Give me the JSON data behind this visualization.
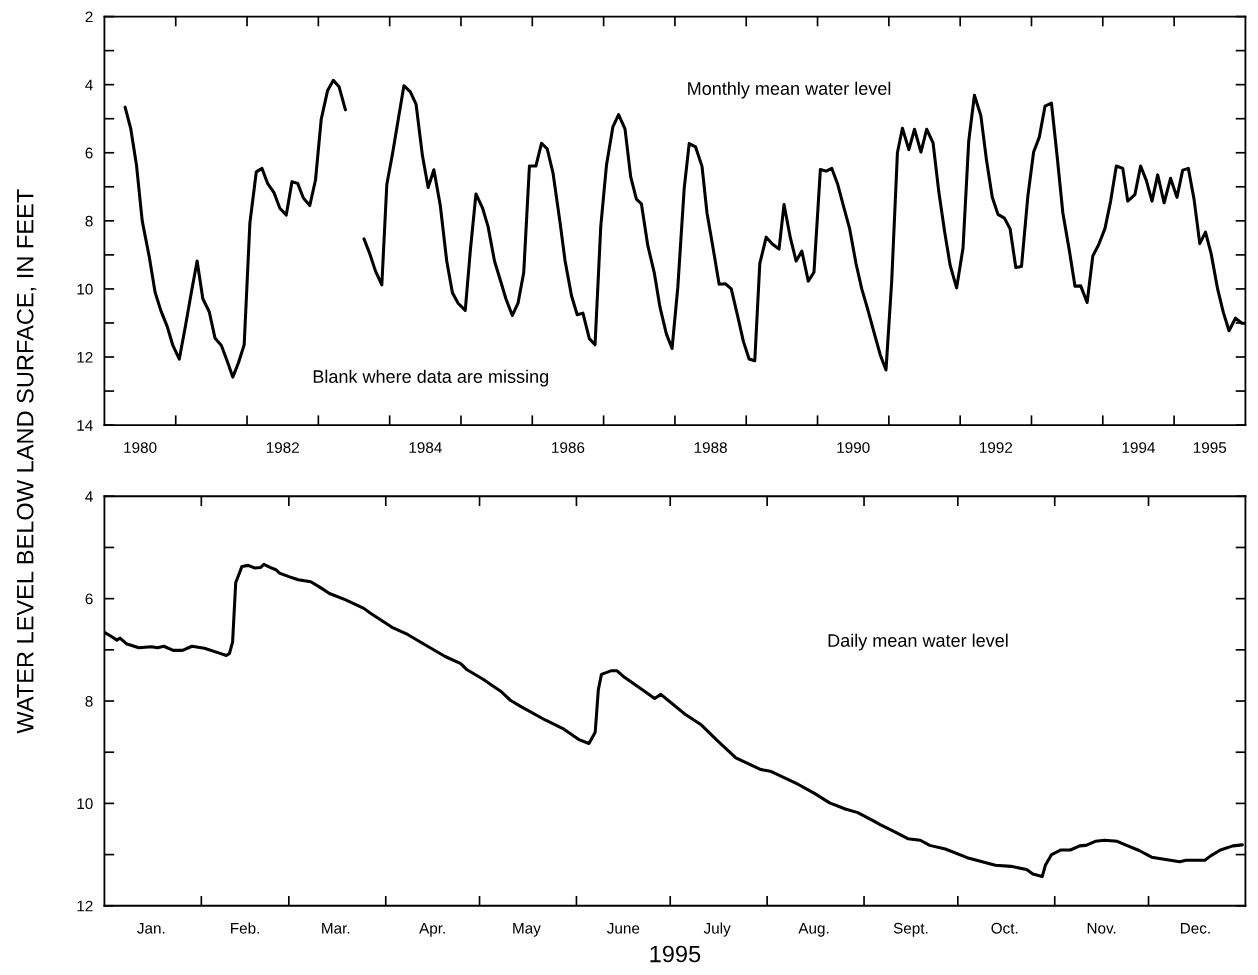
{
  "chart_data": [
    {
      "type": "line",
      "ylabel": "WATER LEVEL BELOW LAND SURFACE, IN FEET",
      "annotations": [
        "Monthly mean water level",
        "Blank where data are missing"
      ],
      "xlim": [
        1980,
        1996
      ],
      "ylim": [
        14,
        2
      ],
      "xticks": [
        {
          "value": 1981,
          "label": null
        },
        {
          "value": 1982,
          "label": null
        },
        {
          "value": 1983,
          "label": null
        },
        {
          "value": 1984,
          "label": null
        },
        {
          "value": 1985,
          "label": null
        },
        {
          "value": 1986,
          "label": null
        },
        {
          "value": 1987,
          "label": null
        },
        {
          "value": 1988,
          "label": null
        },
        {
          "value": 1989,
          "label": null
        },
        {
          "value": 1990,
          "label": null
        },
        {
          "value": 1991,
          "label": null
        },
        {
          "value": 1992,
          "label": null
        },
        {
          "value": 1993,
          "label": null
        },
        {
          "value": 1994,
          "label": null
        },
        {
          "value": 1995,
          "label": null
        },
        {
          "value": 1980.5,
          "label": "1980"
        },
        {
          "value": 1982.5,
          "label": "1982"
        },
        {
          "value": 1984.5,
          "label": "1984"
        },
        {
          "value": 1986.5,
          "label": "1986"
        },
        {
          "value": 1988.5,
          "label": "1988"
        },
        {
          "value": 1990.5,
          "label": "1990"
        },
        {
          "value": 1992.5,
          "label": "1992"
        },
        {
          "value": 1994.5,
          "label": "1994"
        },
        {
          "value": 1995.5,
          "label": "1995"
        }
      ],
      "yticks": [
        2,
        {
          "value": 3,
          "label": null
        },
        4,
        {
          "value": 5,
          "label": null
        },
        6,
        {
          "value": 7,
          "label": null
        },
        8,
        {
          "value": 9,
          "label": null
        },
        10,
        {
          "value": 11,
          "label": null
        },
        12,
        {
          "value": 13,
          "label": null
        },
        14
      ],
      "x": [
        1980.29,
        1980.37,
        1980.45,
        1980.53,
        1980.63,
        1980.71,
        1980.79,
        1980.88,
        1980.96,
        1981.05,
        1981.13,
        1981.22,
        1981.3,
        1981.38,
        1981.47,
        1981.55,
        1981.64,
        1981.72,
        1981.8,
        1981.88,
        1981.96,
        1982.04,
        1982.13,
        1982.21,
        1982.29,
        1982.38,
        1982.46,
        1982.55,
        1982.63,
        1982.71,
        1982.79,
        1982.88,
        1982.96,
        1983.04,
        1983.13,
        1983.21,
        1983.29,
        1983.38,
        1983.5,
        1983.64,
        1983.72,
        1983.8,
        1983.89,
        1983.96,
        1984.04,
        1984.12,
        1984.2,
        1984.29,
        1984.37,
        1984.46,
        1984.54,
        1984.62,
        1984.71,
        1984.8,
        1984.88,
        1984.96,
        1985.06,
        1985.13,
        1985.21,
        1985.3,
        1985.38,
        1985.47,
        1985.55,
        1985.63,
        1985.72,
        1985.8,
        1985.88,
        1985.96,
        1986.05,
        1986.13,
        1986.21,
        1986.29,
        1986.39,
        1986.46,
        1986.55,
        1986.63,
        1986.71,
        1986.8,
        1986.88,
        1986.96,
        1987.04,
        1987.13,
        1987.21,
        1987.3,
        1987.38,
        1987.46,
        1987.53,
        1987.62,
        1987.71,
        1987.79,
        1987.88,
        1987.96,
        1988.04,
        1988.13,
        1988.2,
        1988.29,
        1988.38,
        1988.45,
        1988.53,
        1988.62,
        1988.71,
        1988.79,
        1988.88,
        1988.96,
        1989.04,
        1989.12,
        1989.19,
        1989.28,
        1989.37,
        1989.46,
        1989.53,
        1989.62,
        1989.7,
        1989.78,
        1989.87,
        1989.95,
        1990.04,
        1990.12,
        1990.2,
        1990.28,
        1990.36,
        1990.45,
        1990.54,
        1990.62,
        1990.7,
        1990.79,
        1990.88,
        1990.96,
        1991.04,
        1991.12,
        1991.19,
        1991.28,
        1991.36,
        1991.45,
        1991.53,
        1991.62,
        1991.7,
        1991.78,
        1991.86,
        1991.95,
        1992.04,
        1992.12,
        1992.2,
        1992.29,
        1992.37,
        1992.45,
        1992.53,
        1992.62,
        1992.7,
        1992.78,
        1992.86,
        1992.95,
        1993.03,
        1993.11,
        1993.19,
        1993.28,
        1993.36,
        1993.44,
        1993.53,
        1993.61,
        1993.69,
        1993.78,
        1993.86,
        1993.94,
        1994.03,
        1994.11,
        1994.19,
        1994.28,
        1994.35,
        1994.45,
        1994.53,
        1994.61,
        1994.69,
        1994.77,
        1994.86,
        1994.95,
        1995.04,
        1995.12,
        1995.2,
        1995.28,
        1995.36,
        1995.44,
        1995.52,
        1995.61,
        1995.69,
        1995.77,
        1995.86,
        1995.95,
        1995.99
      ],
      "series": [
        {
          "color": "#000000",
          "values": [
            4.66,
            5.3,
            6.37,
            8.0,
            9.07,
            10.09,
            10.63,
            11.1,
            11.66,
            12.06,
            11.16,
            10.09,
            9.18,
            10.29,
            10.67,
            11.44,
            11.66,
            12.11,
            12.59,
            12.17,
            11.64,
            8.06,
            6.56,
            6.46,
            6.91,
            7.18,
            7.63,
            7.83,
            6.85,
            6.9,
            7.33,
            7.55,
            6.8,
            5.02,
            4.17,
            3.87,
            4.06,
            4.74,
            null,
            8.53,
            8.96,
            9.47,
            9.88,
            6.93,
            6.03,
            5.02,
            4.03,
            4.21,
            4.57,
            6.09,
            7.02,
            6.5,
            7.55,
            9.18,
            10.11,
            10.42,
            10.63,
            8.9,
            7.21,
            7.61,
            8.17,
            9.18,
            9.73,
            10.29,
            10.78,
            10.42,
            9.52,
            6.39,
            6.39,
            5.72,
            5.89,
            6.59,
            8.06,
            9.18,
            10.2,
            10.76,
            10.71,
            11.46,
            11.64,
            8.17,
            6.37,
            5.24,
            4.88,
            5.3,
            6.71,
            7.36,
            7.5,
            8.73,
            9.52,
            10.53,
            11.32,
            11.75,
            9.97,
            7.05,
            5.73,
            5.83,
            6.4,
            7.77,
            8.74,
            9.86,
            9.85,
            10.0,
            10.8,
            11.54,
            12.06,
            12.11,
            9.26,
            8.48,
            8.69,
            8.83,
            7.52,
            8.51,
            9.18,
            8.89,
            9.77,
            9.51,
            6.49,
            6.54,
            6.46,
            6.91,
            7.54,
            8.23,
            9.26,
            10.0,
            10.57,
            11.26,
            11.94,
            12.38,
            9.77,
            6.0,
            5.28,
            5.91,
            5.31,
            5.98,
            5.31,
            5.71,
            7.14,
            8.29,
            9.31,
            9.97,
            8.8,
            5.66,
            4.31,
            4.91,
            6.23,
            7.31,
            7.81,
            7.92,
            8.23,
            9.37,
            9.34,
            7.26,
            5.98,
            5.54,
            4.63,
            4.54,
            6.11,
            7.77,
            8.86,
            9.92,
            9.91,
            10.4,
            9.03,
            8.71,
            8.23,
            7.42,
            6.39,
            6.46,
            7.42,
            7.23,
            6.39,
            6.81,
            7.42,
            6.65,
            7.47,
            6.75,
            7.31,
            6.51,
            6.46,
            7.37,
            8.67,
            8.33,
            8.97,
            10.0,
            10.69,
            11.23,
            10.86,
            11.01,
            11.01
          ]
        }
      ]
    },
    {
      "type": "line",
      "xlabel": "1995",
      "annotations": [
        "Daily mean water level"
      ],
      "xlim": [
        "1995-01-01",
        "1996-01-01"
      ],
      "ylim": [
        12,
        4
      ],
      "xticks": [
        {
          "value": "1995-02-01",
          "label": null
        },
        {
          "value": "1995-03-01",
          "label": null
        },
        {
          "value": "1995-04-01",
          "label": null
        },
        {
          "value": "1995-05-01",
          "label": null
        },
        {
          "value": "1995-06-01",
          "label": null
        },
        {
          "value": "1995-07-01",
          "label": null
        },
        {
          "value": "1995-08-01",
          "label": null
        },
        {
          "value": "1995-09-01",
          "label": null
        },
        {
          "value": "1995-10-01",
          "label": null
        },
        {
          "value": "1995-11-01",
          "label": null
        },
        {
          "value": "1995-12-01",
          "label": null
        },
        {
          "value": "1995-01-16",
          "label": "Jan."
        },
        {
          "value": "1995-02-15",
          "label": "Feb."
        },
        {
          "value": "1995-03-16",
          "label": "Mar."
        },
        {
          "value": "1995-04-16",
          "label": "Apr."
        },
        {
          "value": "1995-05-16",
          "label": "May"
        },
        {
          "value": "1995-06-16",
          "label": "June"
        },
        {
          "value": "1995-07-16",
          "label": "July"
        },
        {
          "value": "1995-08-16",
          "label": "Aug."
        },
        {
          "value": "1995-09-16",
          "label": "Sept."
        },
        {
          "value": "1995-10-16",
          "label": "Oct."
        },
        {
          "value": "1995-11-16",
          "label": "Nov."
        },
        {
          "value": "1995-12-16",
          "label": "Dec."
        }
      ],
      "yticks": [
        4,
        {
          "value": 5,
          "label": null
        },
        6,
        {
          "value": 7,
          "label": null
        },
        8,
        {
          "value": 9,
          "label": null
        },
        10,
        {
          "value": 11,
          "label": null
        },
        12
      ],
      "x": [
        "1995-01-01",
        "1995-01-03",
        "1995-01-05",
        "1995-01-06",
        "1995-01-08",
        "1995-01-12",
        "1995-01-16",
        "1995-01-18",
        "1995-01-20",
        "1995-01-23",
        "1995-01-26",
        "1995-01-29",
        "1995-02-02",
        "1995-02-07",
        "1995-02-09",
        "1995-02-10",
        "1995-02-11",
        "1995-02-12",
        "1995-02-14",
        "1995-02-16",
        "1995-02-18",
        "1995-02-20",
        "1995-02-21",
        "1995-02-23",
        "1995-02-25",
        "1995-02-26",
        "1995-03-01",
        "1995-03-04",
        "1995-03-08",
        "1995-03-11",
        "1995-03-14",
        "1995-03-19",
        "1995-03-25",
        "1995-03-27",
        "1995-04-03",
        "1995-04-08",
        "1995-04-13",
        "1995-04-20",
        "1995-04-25",
        "1995-04-27",
        "1995-05-02",
        "1995-05-08",
        "1995-05-11",
        "1995-05-14",
        "1995-05-22",
        "1995-05-28",
        "1995-06-02",
        "1995-06-05",
        "1995-06-07",
        "1995-06-08",
        "1995-06-09",
        "1995-06-12",
        "1995-06-14",
        "1995-06-16",
        "1995-06-19",
        "1995-06-23",
        "1995-06-26",
        "1995-06-28",
        "1995-06-30",
        "1995-07-06",
        "1995-07-11",
        "1995-07-16",
        "1995-07-22",
        "1995-07-30",
        "1995-08-02",
        "1995-08-11",
        "1995-08-16",
        "1995-08-21",
        "1995-08-26",
        "1995-08-30",
        "1995-09-04",
        "1995-09-06",
        "1995-09-11",
        "1995-09-15",
        "1995-09-19",
        "1995-09-22",
        "1995-09-27",
        "1995-10-04",
        "1995-10-13",
        "1995-10-18",
        "1995-10-23",
        "1995-10-25",
        "1995-10-28",
        "1995-10-29",
        "1995-10-31",
        "1995-11-03",
        "1995-11-06",
        "1995-11-09",
        "1995-11-11",
        "1995-11-14",
        "1995-11-17",
        "1995-11-21",
        "1995-11-24",
        "1995-11-28",
        "1995-12-02",
        "1995-12-07",
        "1995-12-11",
        "1995-12-13",
        "1995-12-19",
        "1995-12-21",
        "1995-12-24",
        "1995-12-28",
        "1995-12-31"
      ],
      "series": [
        {
          "color": "#000000",
          "values": [
            6.66,
            6.73,
            6.81,
            6.77,
            6.88,
            6.96,
            6.94,
            6.96,
            6.93,
            7.01,
            7.01,
            6.93,
            6.97,
            7.07,
            7.11,
            7.07,
            6.85,
            5.69,
            5.37,
            5.35,
            5.4,
            5.39,
            5.33,
            5.39,
            5.44,
            5.5,
            5.57,
            5.63,
            5.67,
            5.78,
            5.9,
            6.02,
            6.19,
            6.28,
            6.56,
            6.7,
            6.88,
            7.13,
            7.27,
            7.39,
            7.57,
            7.82,
            7.99,
            8.1,
            8.37,
            8.55,
            8.76,
            8.83,
            8.61,
            7.78,
            7.48,
            7.41,
            7.41,
            7.52,
            7.65,
            7.82,
            7.95,
            7.87,
            7.97,
            8.27,
            8.47,
            8.77,
            9.11,
            9.34,
            9.37,
            9.63,
            9.8,
            9.99,
            10.11,
            10.18,
            10.34,
            10.41,
            10.56,
            10.69,
            10.72,
            10.82,
            10.89,
            11.06,
            11.21,
            11.23,
            11.29,
            11.38,
            11.43,
            11.21,
            11.0,
            10.91,
            10.91,
            10.83,
            10.82,
            10.74,
            10.72,
            10.74,
            10.82,
            10.92,
            11.05,
            11.1,
            11.14,
            11.11,
            11.11,
            11.02,
            10.91,
            10.83,
            10.81
          ]
        }
      ]
    }
  ]
}
